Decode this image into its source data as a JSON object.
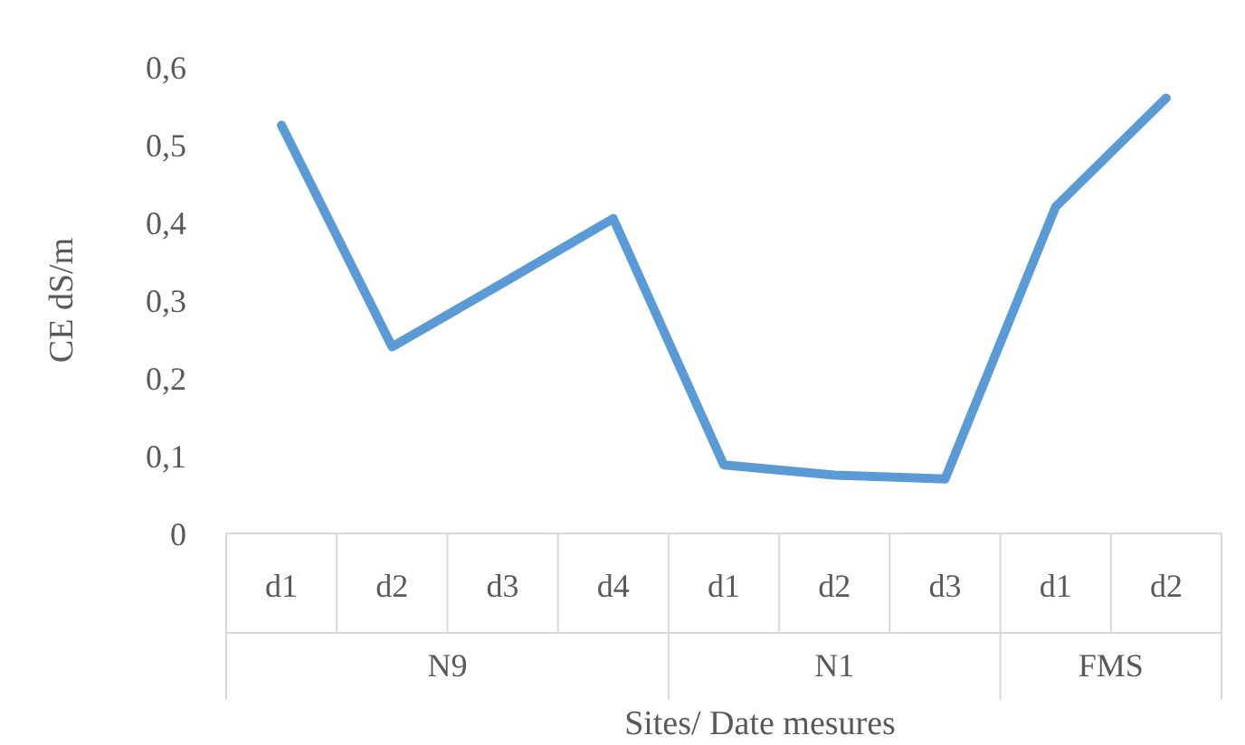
{
  "chart_data": {
    "type": "line",
    "ylabel": "CE dS/m",
    "xlabel": "Sites/ Date mesures",
    "categories": [
      "d1",
      "d2",
      "d3",
      "d4",
      "d1",
      "d2",
      "d3",
      "d1",
      "d2"
    ],
    "series": [
      {
        "color": "#5b9bd5",
        "values": [
          0.525,
          0.24,
          0.322,
          0.405,
          0.088,
          0.075,
          0.07,
          0.42,
          0.56
        ]
      }
    ],
    "ylim": [
      0,
      0.6
    ],
    "yticks": [
      0,
      {
        "value": 0.1,
        "label": "0,1"
      },
      {
        "value": 0.2,
        "label": "0,2"
      },
      {
        "value": 0.3,
        "label": "0,3"
      },
      {
        "value": 0.4,
        "label": "0,4"
      },
      {
        "value": 0.5,
        "label": "0,5"
      },
      {
        "value": 0.6,
        "label": "0,6"
      }
    ],
    "annotations": [
      "N9",
      "N1",
      "FMS"
    ],
    "grid": false,
    "marker": "none",
    "line_style": "solid"
  }
}
